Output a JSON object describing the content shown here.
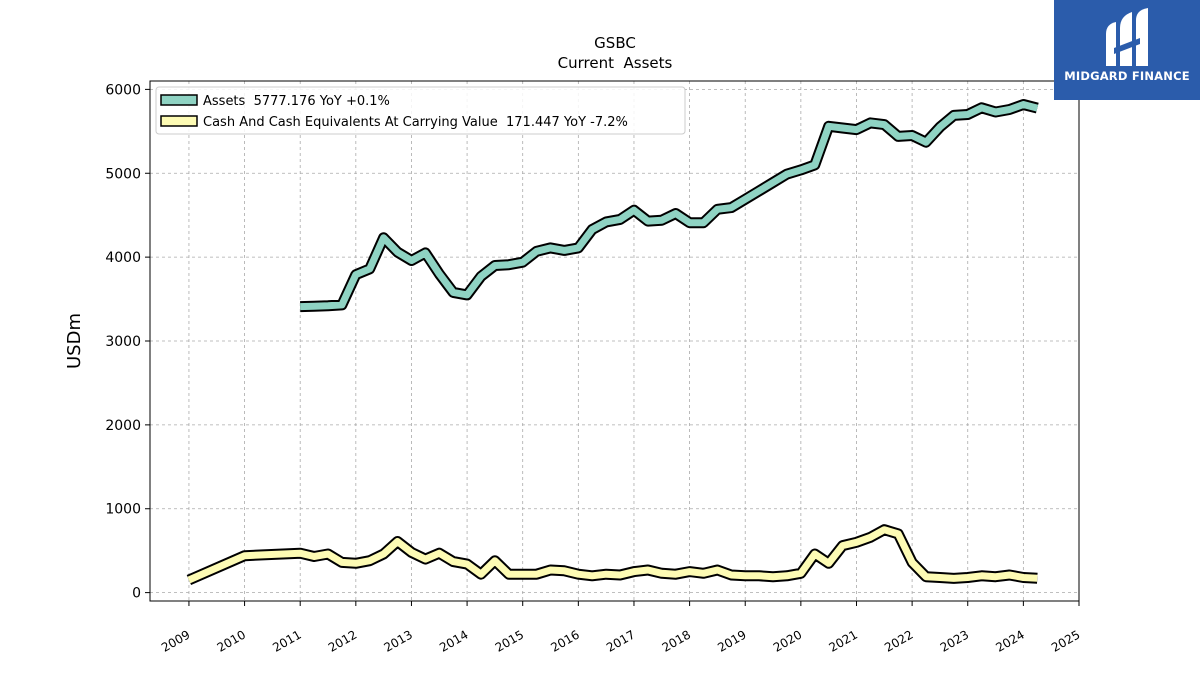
{
  "brand": {
    "name": "MIDGARD FINANCE",
    "color": "#2b5cab",
    "icon": "midgard-logo-icon"
  },
  "chart_data": {
    "type": "line",
    "title": "GSBC",
    "subtitle": "Current  Assets",
    "xlabel": "",
    "ylabel": "USDm",
    "xlim": [
      2008.3,
      2025.0
    ],
    "ylim": [
      -100,
      6100
    ],
    "x_ticks": [
      "2009",
      "2010",
      "2011",
      "2012",
      "2013",
      "2014",
      "2015",
      "2016",
      "2017",
      "2018",
      "2019",
      "2020",
      "2021",
      "2022",
      "2023",
      "2024",
      "2025"
    ],
    "y_ticks": [
      0,
      1000,
      2000,
      3000,
      4000,
      5000,
      6000
    ],
    "grid": true,
    "legend_position": "top-left",
    "series": [
      {
        "name": "Assets  5777.176 YoY +0.1%",
        "color": "#8fd3c3",
        "x": [
          2011.0,
          2011.25,
          2011.5,
          2011.75,
          2012.0,
          2012.25,
          2012.5,
          2012.75,
          2013.0,
          2013.25,
          2013.5,
          2013.75,
          2014.0,
          2014.25,
          2014.5,
          2014.75,
          2015.0,
          2015.25,
          2015.5,
          2015.75,
          2016.0,
          2016.25,
          2016.5,
          2016.75,
          2017.0,
          2017.25,
          2017.5,
          2017.75,
          2018.0,
          2018.25,
          2018.5,
          2018.75,
          2019.0,
          2019.25,
          2019.5,
          2019.75,
          2020.0,
          2020.25,
          2020.5,
          2020.75,
          2021.0,
          2021.25,
          2021.5,
          2021.75,
          2022.0,
          2022.25,
          2022.5,
          2022.75,
          2023.0,
          2023.25,
          2023.5,
          2023.75,
          2024.0,
          2024.25
        ],
        "values": [
          3410,
          3415,
          3420,
          3430,
          3790,
          3860,
          4230,
          4060,
          3960,
          4050,
          3800,
          3580,
          3550,
          3770,
          3900,
          3910,
          3940,
          4070,
          4110,
          4080,
          4110,
          4330,
          4420,
          4450,
          4560,
          4430,
          4440,
          4520,
          4410,
          4410,
          4570,
          4590,
          4690,
          4790,
          4890,
          4990,
          5040,
          5100,
          5560,
          5540,
          5520,
          5600,
          5580,
          5440,
          5450,
          5370,
          5550,
          5690,
          5700,
          5780,
          5730,
          5760,
          5820,
          5777
        ]
      },
      {
        "name": "Cash And Cash Equivalents At Carrying Value  171.447 YoY -7.2%",
        "color": "#fdfbb4",
        "x": [
          2009.0,
          2010.0,
          2011.0,
          2011.25,
          2011.5,
          2011.75,
          2012.0,
          2012.25,
          2012.5,
          2012.75,
          2013.0,
          2013.25,
          2013.5,
          2013.75,
          2014.0,
          2014.25,
          2014.5,
          2014.75,
          2015.0,
          2015.25,
          2015.5,
          2015.75,
          2016.0,
          2016.25,
          2016.5,
          2016.75,
          2017.0,
          2017.25,
          2017.5,
          2017.75,
          2018.0,
          2018.25,
          2018.5,
          2018.75,
          2019.0,
          2019.25,
          2019.5,
          2019.75,
          2020.0,
          2020.25,
          2020.5,
          2020.75,
          2021.0,
          2021.25,
          2021.5,
          2021.75,
          2022.0,
          2022.25,
          2022.5,
          2022.75,
          2023.0,
          2023.25,
          2023.5,
          2023.75,
          2024.0,
          2024.25
        ],
        "values": [
          150,
          440,
          470,
          430,
          460,
          360,
          350,
          380,
          460,
          610,
          480,
          400,
          470,
          370,
          340,
          220,
          380,
          220,
          220,
          220,
          270,
          260,
          220,
          200,
          220,
          210,
          250,
          270,
          230,
          220,
          250,
          230,
          270,
          210,
          200,
          200,
          190,
          200,
          230,
          460,
          350,
          560,
          600,
          660,
          750,
          700,
          360,
          190,
          180,
          170,
          180,
          200,
          190,
          210,
          180,
          171
        ]
      }
    ]
  }
}
